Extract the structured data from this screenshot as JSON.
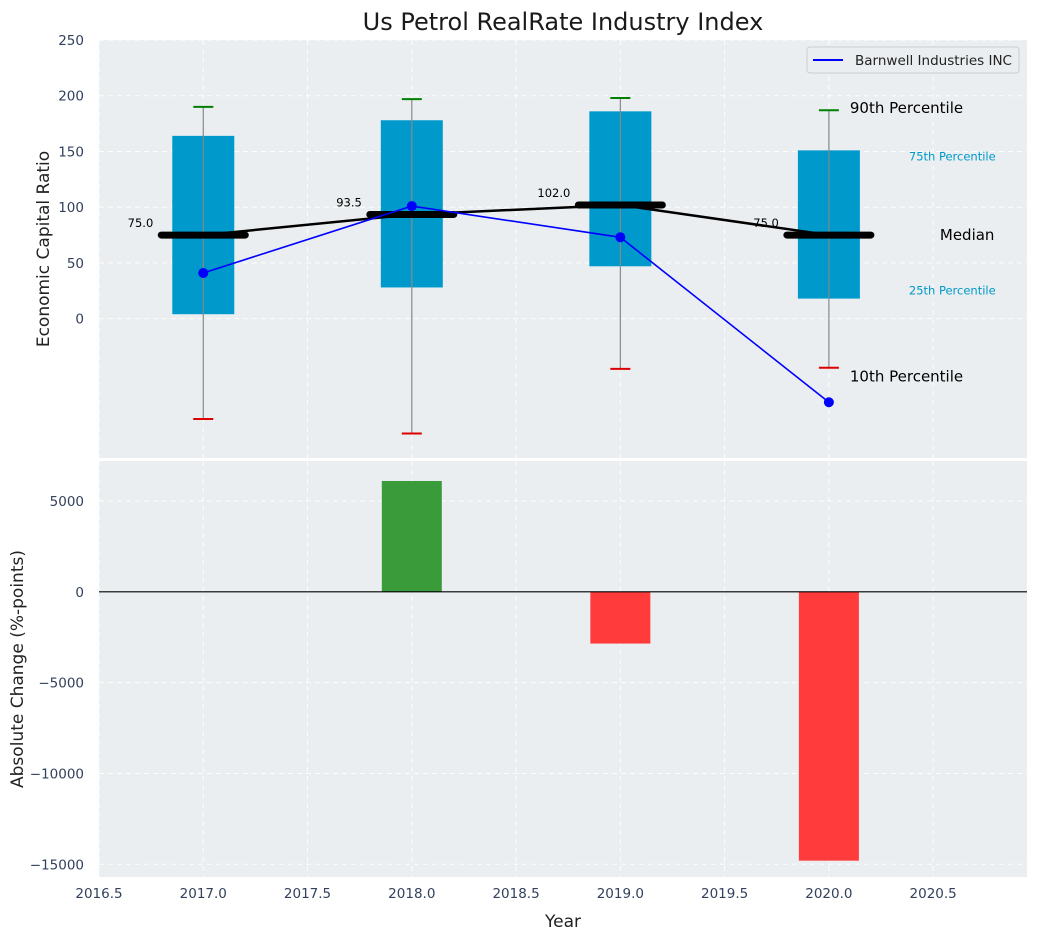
{
  "chart_data": [
    {
      "type": "box",
      "title": "Us Petrol RealRate Industry Index",
      "xlabel": "",
      "ylabel": "Economic Capital Ratio",
      "xlim": [
        2016.5,
        2020.95
      ],
      "ylim": [
        -125,
        250
      ],
      "yticks": [
        0,
        50,
        100,
        150,
        200,
        250
      ],
      "grid": true,
      "legend": {
        "position": "top-right",
        "entries": [
          "Barnwell Industries INC"
        ]
      },
      "box_color": "#0099cc",
      "company_color": "#0000ff",
      "median_color": "#000000",
      "upper_whisker_color": "#008000",
      "lower_whisker_color": "#dd0000",
      "years": [
        2017,
        2018,
        2019,
        2020
      ],
      "p10": [
        -90,
        -103,
        -45,
        -44
      ],
      "p25": [
        4,
        28,
        47,
        18
      ],
      "median": [
        75,
        93.5,
        102,
        75
      ],
      "p75": [
        164,
        178,
        186,
        151
      ],
      "p90": [
        190,
        197,
        198,
        187
      ],
      "median_labels": [
        "75.0",
        "93.5",
        "102.0",
        "75.0"
      ],
      "company": {
        "name": "Barnwell Industries INC",
        "values": [
          41,
          101,
          73,
          -75
        ]
      },
      "annotations": {
        "p90": "90th Percentile",
        "p75": "75th Percentile",
        "median": "Median",
        "p25": "25th Percentile",
        "p10": "10th Percentile"
      }
    },
    {
      "type": "bar",
      "xlabel": "Year",
      "ylabel": "Absolute Change (%-points)",
      "xlim": [
        2016.5,
        2020.95
      ],
      "ylim": [
        -15700,
        7200
      ],
      "yticks": [
        -15000,
        -10000,
        -5000,
        0,
        5000
      ],
      "xticks": [
        2016.5,
        2017.0,
        2017.5,
        2018.0,
        2018.5,
        2019.0,
        2019.5,
        2020.0,
        2020.5
      ],
      "grid": true,
      "categories": [
        2018,
        2019,
        2020
      ],
      "values": [
        6100,
        -2850,
        -14800
      ],
      "positive_color": "#3a9b3a",
      "negative_color": "#ff3b3b"
    }
  ]
}
